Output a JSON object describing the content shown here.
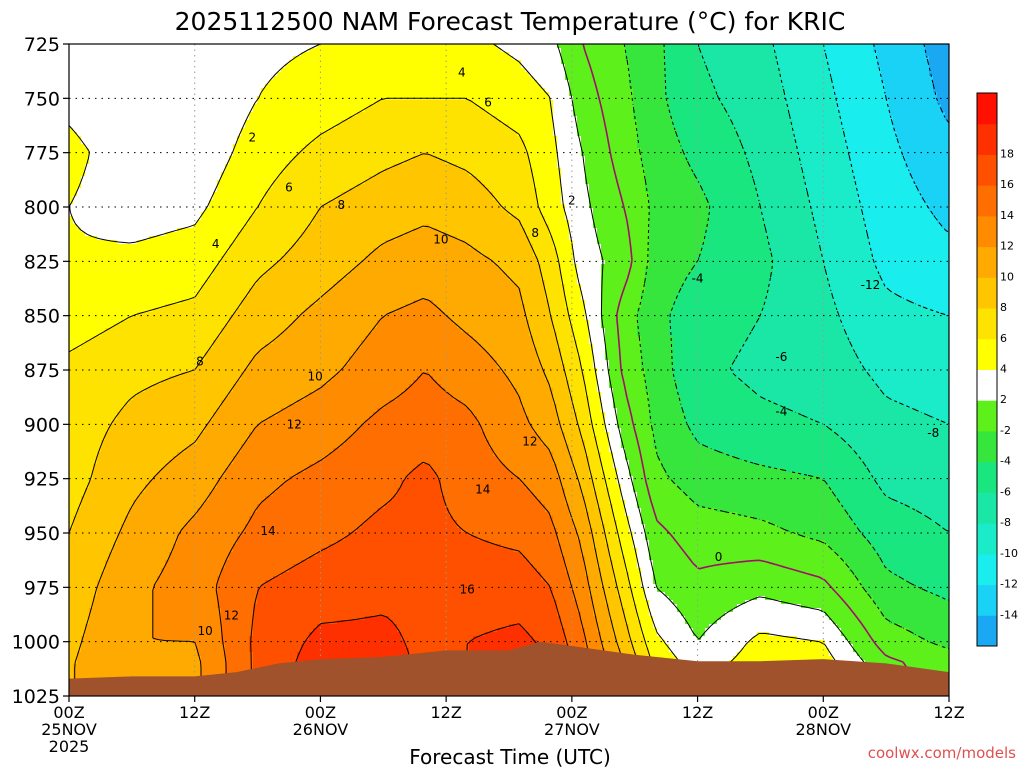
{
  "chart_data": {
    "type": "heatmap",
    "title": "2025112500 NAM Forecast Temperature (°C) for KRIC",
    "xlabel": "Forecast Time (UTC)",
    "ylabel": "",
    "credit": "coolwx.com/models",
    "x_ticks": [
      {
        "hour": 0,
        "line1": "00Z",
        "line2": "25NOV",
        "line3": "2025"
      },
      {
        "hour": 12,
        "line1": "12Z",
        "line2": "",
        "line3": ""
      },
      {
        "hour": 24,
        "line1": "00Z",
        "line2": "26NOV",
        "line3": ""
      },
      {
        "hour": 36,
        "line1": "12Z",
        "line2": "",
        "line3": ""
      },
      {
        "hour": 48,
        "line1": "00Z",
        "line2": "27NOV",
        "line3": ""
      },
      {
        "hour": 60,
        "line1": "12Z",
        "line2": "",
        "line3": ""
      },
      {
        "hour": 72,
        "line1": "00Z",
        "line2": "28NOV",
        "line3": ""
      },
      {
        "hour": 84,
        "line1": "12Z",
        "line2": "",
        "line3": ""
      }
    ],
    "xlim": [
      0,
      84
    ],
    "y_ticks": [
      725,
      750,
      775,
      800,
      825,
      850,
      875,
      900,
      925,
      950,
      975,
      1000,
      1025
    ],
    "ylim": [
      1025,
      725
    ],
    "colorbar": {
      "levels": [
        -16,
        -14,
        -12,
        -10,
        -8,
        -6,
        -4,
        -2,
        2,
        4,
        6,
        8,
        10,
        12,
        14,
        16,
        18,
        20
      ],
      "labels": [
        "-14",
        "-12",
        "-10",
        "-8",
        "-6",
        "-4",
        "-2",
        "2",
        "4",
        "6",
        "8",
        "10",
        "12",
        "14",
        "16",
        "18"
      ],
      "colors": [
        "#1aa8f2",
        "#1ad2f5",
        "#1aeded",
        "#1aebc8",
        "#1ae6a5",
        "#1ae680",
        "#37e63c",
        "#5ef01a",
        "#ffffff",
        "#ffff00",
        "#ffe300",
        "#ffc600",
        "#ffaa00",
        "#ff8c00",
        "#ff6e00",
        "#ff5000",
        "#ff3000",
        "#ff1000"
      ]
    },
    "series": [
      {
        "name": "Temperature",
        "units": "°C",
        "profile_pressures": [
          725,
          750,
          775,
          800,
          825,
          850,
          875,
          900,
          925,
          950,
          975,
          1000,
          1010
        ],
        "profiles": [
          {
            "hour": 0,
            "values": [
              2.5,
              3.5,
              4.5,
              4.0,
              4.2,
              5.0,
              6.5,
              7.0,
              7.2,
              8.0,
              8.8,
              9.5,
              9.8
            ]
          },
          {
            "hour": 6,
            "values": [
              2.5,
              2.5,
              3.0,
              3.0,
              4.5,
              6.0,
              7.5,
              8.5,
              9.5,
              10.5,
              11.5,
              12.0,
              12.0
            ]
          },
          {
            "hour": 12,
            "values": [
              2.5,
              2.0,
              2.5,
              3.5,
              5.0,
              6.5,
              8.0,
              9.5,
              11.0,
              12.5,
              13.0,
              12.0,
              11.5
            ]
          },
          {
            "hour": 18,
            "values": [
              3.5,
              4.0,
              5.0,
              6.0,
              7.5,
              9.0,
              10.5,
              12.0,
              13.5,
              14.5,
              16.0,
              16.5,
              16.5
            ]
          },
          {
            "hour": 24,
            "values": [
              4.0,
              5.0,
              6.5,
              8.0,
              9.0,
              10.5,
              11.5,
              13.0,
              14.5,
              15.5,
              17.0,
              18.5,
              19.0
            ]
          },
          {
            "hour": 30,
            "values": [
              4.5,
              6.0,
              7.5,
              9.0,
              10.5,
              12.0,
              13.0,
              14.5,
              15.5,
              16.5,
              17.5,
              18.5,
              19.0
            ]
          },
          {
            "hour": 34,
            "values": [
              4.5,
              6.0,
              8.0,
              9.5,
              11.0,
              12.5,
              14.0,
              15.0,
              16.5,
              16.5,
              17.5,
              17.5,
              17.5
            ]
          },
          {
            "hour": 38,
            "values": [
              4.5,
              6.0,
              7.5,
              9.0,
              10.5,
              11.5,
              13.0,
              14.5,
              15.0,
              16.0,
              17.0,
              18.0,
              18.0
            ]
          },
          {
            "hour": 43,
            "values": [
              3.5,
              5.0,
              6.5,
              7.5,
              9.5,
              10.5,
              11.5,
              12.5,
              14.0,
              15.5,
              17.0,
              18.5,
              19.0
            ]
          },
          {
            "hour": 46,
            "values": [
              2.5,
              4.0,
              4.5,
              5.0,
              7.0,
              8.0,
              9.5,
              11.0,
              13.0,
              14.5,
              16.0,
              17.5,
              18.0
            ]
          },
          {
            "hour": 49,
            "values": [
              0.0,
              1.0,
              2.0,
              2.5,
              3.0,
              4.5,
              6.0,
              7.5,
              9.5,
              11.5,
              13.0,
              14.5,
              15.0
            ]
          },
          {
            "hour": 53,
            "values": [
              -2.0,
              -1.5,
              -1.0,
              0.0,
              1.0,
              -1.0,
              -0.5,
              1.0,
              3.0,
              5.0,
              7.0,
              9.0,
              10.0
            ]
          },
          {
            "hour": 56,
            "values": [
              -3.5,
              -3.5,
              -3.0,
              -2.5,
              -3.0,
              -3.5,
              -3.0,
              -2.5,
              -1.5,
              0.5,
              2.0,
              4.5,
              5.5
            ]
          },
          {
            "hour": 60,
            "values": [
              -6.0,
              -5.5,
              -4.5,
              -3.5,
              -4.0,
              -5.0,
              -5.5,
              -4.5,
              -3.0,
              -1.0,
              0.5,
              2.0,
              3.0
            ]
          },
          {
            "hour": 66,
            "values": [
              -7.5,
              -7.0,
              -6.5,
              -6.0,
              -5.5,
              -6.0,
              -6.5,
              -5.5,
              -3.5,
              -1.5,
              1.5,
              4.5,
              5.0
            ]
          },
          {
            "hour": 72,
            "values": [
              -10.0,
              -9.5,
              -9.0,
              -8.5,
              -8.0,
              -7.5,
              -7.0,
              -6.0,
              -4.0,
              -2.5,
              0.5,
              4.0,
              5.0
            ]
          },
          {
            "hour": 78,
            "values": [
              -12.5,
              -12.0,
              -11.5,
              -11.0,
              -10.5,
              -9.5,
              -8.5,
              -7.5,
              -6.5,
              -5.0,
              -3.5,
              -1.0,
              0.5
            ]
          },
          {
            "hour": 84,
            "values": [
              -15.0,
              -14.5,
              -13.5,
              -12.5,
              -11.5,
              -10.0,
              -9.0,
              -8.0,
              -7.0,
              -6.0,
              -4.5,
              -2.5,
              -1.0
            ]
          }
        ]
      }
    ],
    "terrain": {
      "color": "#a0522d",
      "points": [
        [
          0,
          1017
        ],
        [
          6,
          1016
        ],
        [
          12,
          1016
        ],
        [
          16,
          1014
        ],
        [
          20,
          1010
        ],
        [
          24,
          1008
        ],
        [
          30,
          1007
        ],
        [
          36,
          1004
        ],
        [
          42,
          1004
        ],
        [
          45,
          1000
        ],
        [
          48,
          1002
        ],
        [
          54,
          1006
        ],
        [
          60,
          1009
        ],
        [
          66,
          1009
        ],
        [
          72,
          1008
        ],
        [
          78,
          1010
        ],
        [
          84,
          1014
        ]
      ]
    },
    "contour_labels": [
      {
        "text": "4",
        "hour": 37.5,
        "p": 738
      },
      {
        "text": "6",
        "hour": 40.0,
        "p": 752
      },
      {
        "text": "2",
        "hour": 17.5,
        "p": 768
      },
      {
        "text": "6",
        "hour": 21.0,
        "p": 791
      },
      {
        "text": "8",
        "hour": 26.0,
        "p": 799
      },
      {
        "text": "2",
        "hour": 48.0,
        "p": 797
      },
      {
        "text": "10",
        "hour": 35.5,
        "p": 815
      },
      {
        "text": "8",
        "hour": 44.5,
        "p": 812
      },
      {
        "text": "4",
        "hour": 14.0,
        "p": 817
      },
      {
        "text": "-4",
        "hour": 60.0,
        "p": 833
      },
      {
        "text": "-12",
        "hour": 76.5,
        "p": 836
      },
      {
        "text": "-6",
        "hour": 68.0,
        "p": 869
      },
      {
        "text": "8",
        "hour": 12.5,
        "p": 871
      },
      {
        "text": "10",
        "hour": 23.5,
        "p": 878
      },
      {
        "text": "-4",
        "hour": 68.0,
        "p": 894
      },
      {
        "text": "12",
        "hour": 21.5,
        "p": 900
      },
      {
        "text": "-8",
        "hour": 82.5,
        "p": 904
      },
      {
        "text": "12",
        "hour": 44.0,
        "p": 908
      },
      {
        "text": "14",
        "hour": 39.5,
        "p": 930
      },
      {
        "text": "14",
        "hour": 19.0,
        "p": 949
      },
      {
        "text": "0",
        "hour": 62.0,
        "p": 961
      },
      {
        "text": "16",
        "hour": 38.0,
        "p": 976
      },
      {
        "text": "12",
        "hour": 15.5,
        "p": 988
      },
      {
        "text": "10",
        "hour": 13.0,
        "p": 995
      }
    ]
  }
}
